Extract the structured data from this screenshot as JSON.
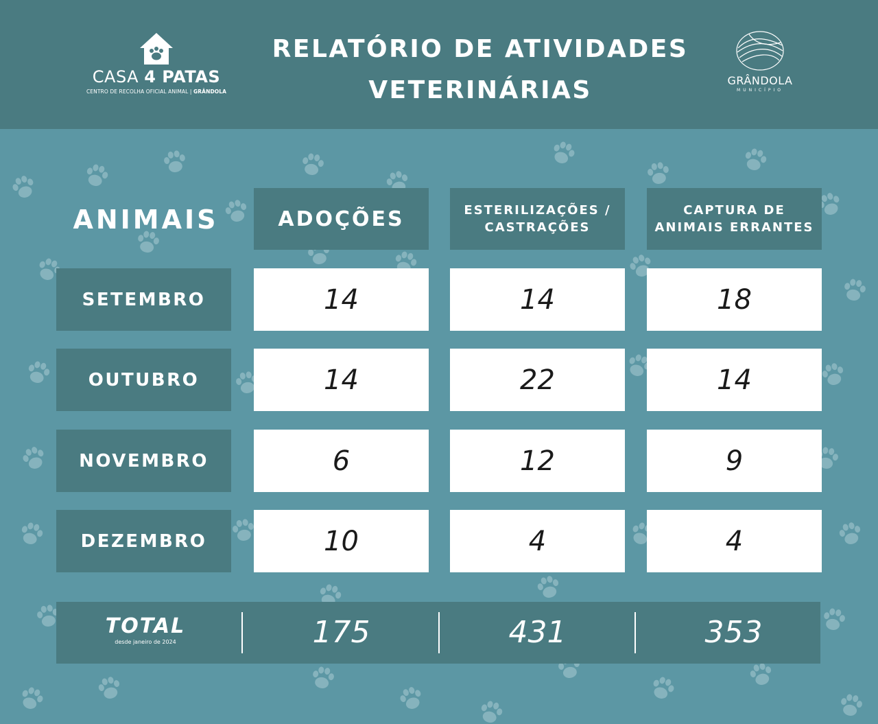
{
  "header": {
    "brand": {
      "name_light": "CASA",
      "name_bold": "4 PATAS",
      "subtitle_light": "CENTRO DE RECOLHA OFICIAL ANIMAL |",
      "subtitle_bold": "GRÂNDOLA"
    },
    "title_line1": "RELATÓRIO DE ATIVIDADES",
    "title_line2": "VETERINÁRIAS",
    "municipality": {
      "name": "GRÂNDOLA",
      "subtitle": "MUNICÍPIO"
    }
  },
  "table": {
    "corner_label": "ANIMAIS",
    "columns": [
      {
        "line1": "ADOÇÕES",
        "line2": ""
      },
      {
        "line1": "ESTERILIZAÇÕES /",
        "line2": "CASTRAÇÕES"
      },
      {
        "line1": "CAPTURA DE",
        "line2": "ANIMAIS ERRANTES"
      }
    ],
    "rows": [
      {
        "month": "SETEMBRO",
        "values": [
          "14",
          "14",
          "18"
        ]
      },
      {
        "month": "OUTUBRO",
        "values": [
          "14",
          "22",
          "14"
        ]
      },
      {
        "month": "NOVEMBRO",
        "values": [
          "6",
          "12",
          "9"
        ]
      },
      {
        "month": "DEZEMBRO",
        "values": [
          "10",
          "4",
          "4"
        ]
      }
    ]
  },
  "total": {
    "label": "TOTAL",
    "since": "desde janeiro de 2024",
    "values": [
      "175",
      "431",
      "353"
    ]
  },
  "colors": {
    "background": "#5c97a4",
    "header": "#4a7b81",
    "cell_dark": "#4a7b81",
    "cell_light": "#ffffff"
  }
}
